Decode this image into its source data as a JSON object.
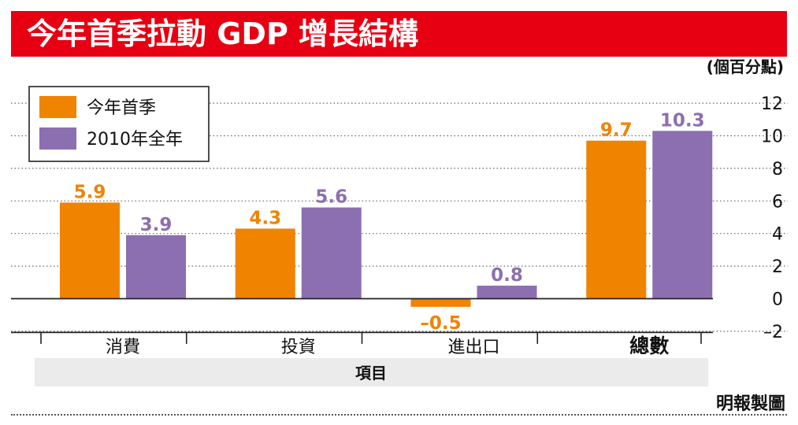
{
  "header": {
    "title": "今年首季拉動 GDP 增長結構"
  },
  "source": "明報製圖",
  "colors": {
    "banner": "#e60012",
    "series1": "#f08300",
    "series2": "#8c6fb0"
  },
  "chart_data": {
    "type": "bar",
    "title": "今年首季拉動 GDP 增長結構",
    "xlabel": "項目",
    "ylabel": "(個百分點)",
    "categories": [
      "消費",
      "投資",
      "進出口",
      "總數"
    ],
    "series": [
      {
        "name": "今年首季",
        "values": [
          5.9,
          4.3,
          -0.5,
          9.7
        ],
        "labels": [
          "5.9",
          "4.3",
          "–0.5",
          "9.7"
        ]
      },
      {
        "name": "2010年全年",
        "values": [
          3.9,
          5.6,
          0.8,
          10.3
        ],
        "labels": [
          "3.9",
          "5.6",
          "0.8",
          "10.3"
        ]
      }
    ],
    "ylim": [
      -2,
      12
    ],
    "yticks": [
      -2,
      0,
      2,
      4,
      6,
      8,
      10,
      12
    ],
    "ytick_labels": [
      "–2",
      "0",
      "2",
      "4",
      "6",
      "8",
      "10",
      "12"
    ],
    "grid": true,
    "legend": "top-left"
  }
}
